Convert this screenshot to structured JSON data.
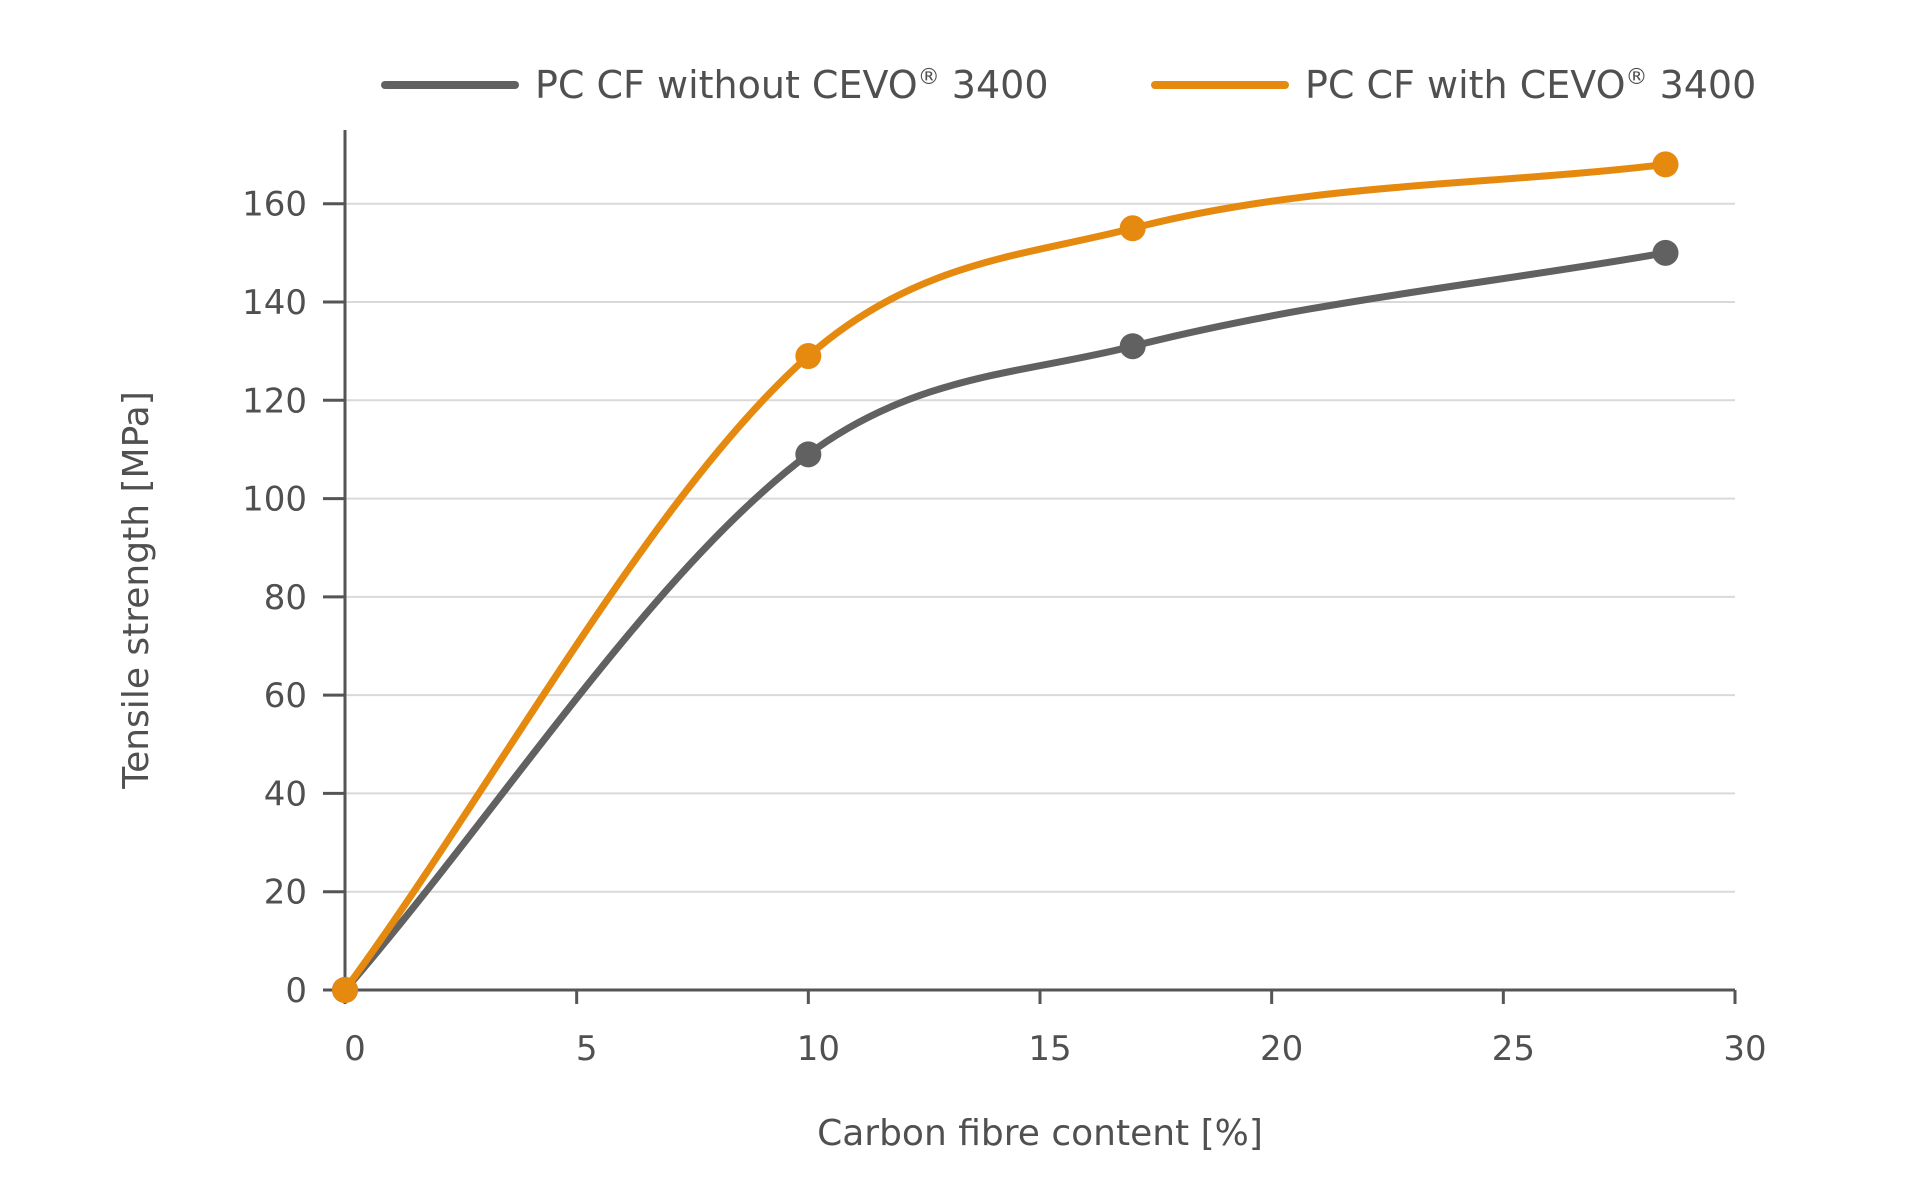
{
  "chart_data": {
    "type": "line",
    "title": "",
    "xlabel": "Carbon fibre content [%]",
    "ylabel": "Tensile strength [MPa]",
    "xlim": [
      0,
      30
    ],
    "ylim": [
      0,
      175
    ],
    "xticks": [
      0,
      5,
      10,
      15,
      20,
      25,
      30
    ],
    "yticks": [
      0,
      20,
      40,
      60,
      80,
      100,
      120,
      140,
      160
    ],
    "grid": "horizontal",
    "legend_position": "top",
    "series": [
      {
        "name": "PC CF without CEVO® 3400",
        "legend_text": "PC CF without CEVO",
        "legend_sup": "®",
        "legend_suffix": " 3400",
        "color": "#616161",
        "x": [
          0,
          10,
          17,
          28.5
        ],
        "y": [
          0,
          109,
          131,
          150
        ]
      },
      {
        "name": "PC CF with CEVO® 3400",
        "legend_text": "PC CF with CEVO",
        "legend_sup": "®",
        "legend_suffix": " 3400",
        "color": "#e58a0f",
        "x": [
          0,
          10,
          17,
          28.5
        ],
        "y": [
          0,
          129,
          155,
          168
        ]
      }
    ]
  }
}
